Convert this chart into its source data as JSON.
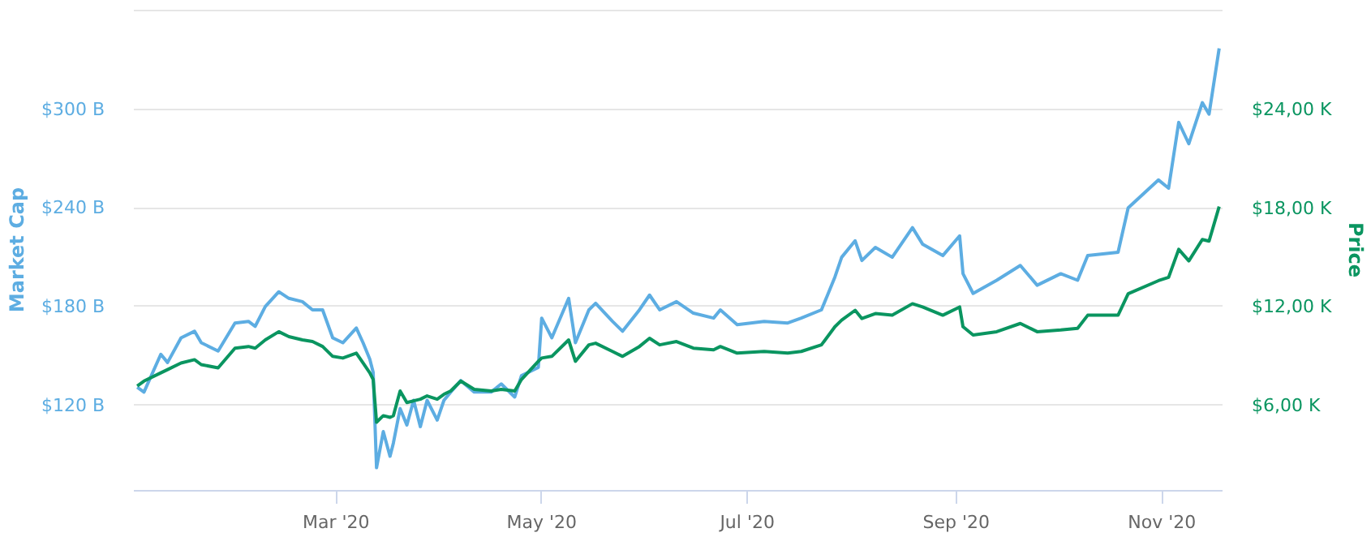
{
  "chart_data": {
    "type": "line",
    "ylabel": "Market Cap",
    "y2label": "Price",
    "x": [
      "2020-01-02",
      "2020-01-04",
      "2020-01-09",
      "2020-01-11",
      "2020-01-15",
      "2020-01-19",
      "2020-01-21",
      "2020-01-26",
      "2020-01-31",
      "2020-02-04",
      "2020-02-06",
      "2020-02-09",
      "2020-02-13",
      "2020-02-16",
      "2020-02-20",
      "2020-02-23",
      "2020-02-26",
      "2020-02-29",
      "2020-03-03",
      "2020-03-07",
      "2020-03-09",
      "2020-03-11",
      "2020-03-12",
      "2020-03-13",
      "2020-03-15",
      "2020-03-17",
      "2020-03-18",
      "2020-03-20",
      "2020-03-22",
      "2020-03-24",
      "2020-03-26",
      "2020-03-28",
      "2020-03-31",
      "2020-04-02",
      "2020-04-04",
      "2020-04-07",
      "2020-04-11",
      "2020-04-16",
      "2020-04-19",
      "2020-04-23",
      "2020-04-25",
      "2020-04-30",
      "2020-05-01",
      "2020-05-04",
      "2020-05-09",
      "2020-05-11",
      "2020-05-15",
      "2020-05-17",
      "2020-05-22",
      "2020-05-25",
      "2020-05-30",
      "2020-06-02",
      "2020-06-05",
      "2020-06-10",
      "2020-06-15",
      "2020-06-21",
      "2020-06-23",
      "2020-06-28",
      "2020-07-06",
      "2020-07-13",
      "2020-07-17",
      "2020-07-23",
      "2020-07-27",
      "2020-07-29",
      "2020-08-02",
      "2020-08-04",
      "2020-08-08",
      "2020-08-13",
      "2020-08-19",
      "2020-08-22",
      "2020-08-28",
      "2020-09-02",
      "2020-09-03",
      "2020-09-06",
      "2020-09-13",
      "2020-09-20",
      "2020-09-25",
      "2020-10-02",
      "2020-10-07",
      "2020-10-10",
      "2020-10-19",
      "2020-10-22",
      "2020-10-31",
      "2020-11-03",
      "2020-11-06",
      "2020-11-09",
      "2020-11-13",
      "2020-11-15",
      "2020-11-18"
    ],
    "series": [
      {
        "color": "#5dade2",
        "values": [
          131,
          128,
          151,
          146,
          161,
          165,
          158,
          153,
          170,
          171,
          168,
          180,
          189,
          185,
          183,
          178,
          178,
          161,
          158,
          167,
          158,
          148,
          140,
          82,
          104,
          89,
          97,
          118,
          108,
          123,
          107,
          123,
          111,
          123,
          128,
          135,
          128,
          128,
          133,
          125,
          138,
          143,
          173,
          161,
          185,
          158,
          178,
          182,
          171,
          165,
          178,
          187,
          178,
          183,
          176,
          173,
          178,
          169,
          171,
          170,
          173,
          178,
          198,
          210,
          220,
          208,
          216,
          210,
          228,
          218,
          211,
          223,
          200,
          188,
          196,
          205,
          193,
          200,
          196,
          211,
          213,
          240,
          257,
          252,
          292,
          279,
          304,
          297,
          337
        ]
      },
      {
        "color": "#0a9560",
        "axis": "y2",
        "values": [
          7.2,
          7.5,
          8.0,
          8.2,
          8.6,
          8.8,
          8.5,
          8.3,
          9.5,
          9.6,
          9.5,
          10.0,
          10.5,
          10.2,
          10.0,
          9.9,
          9.6,
          9.0,
          8.9,
          9.2,
          8.6,
          8.0,
          7.6,
          5.0,
          5.4,
          5.3,
          5.4,
          6.9,
          6.2,
          6.3,
          6.4,
          6.6,
          6.4,
          6.7,
          6.9,
          7.5,
          7.0,
          6.9,
          7.0,
          6.9,
          7.6,
          8.7,
          8.9,
          9.0,
          10.0,
          8.7,
          9.7,
          9.8,
          9.3,
          9.0,
          9.6,
          10.1,
          9.7,
          9.9,
          9.5,
          9.4,
          9.6,
          9.2,
          9.3,
          9.2,
          9.3,
          9.7,
          10.8,
          11.2,
          11.8,
          11.3,
          11.6,
          11.5,
          12.2,
          12.0,
          11.5,
          12.0,
          10.8,
          10.3,
          10.5,
          11.0,
          10.5,
          10.6,
          10.7,
          11.5,
          11.5,
          12.8,
          13.6,
          13.8,
          15.5,
          14.8,
          16.1,
          16.0,
          18.1
        ]
      }
    ],
    "xlim": [
      "2020-01-01",
      "2020-11-19"
    ],
    "xticks": [
      {
        "value": "2020-03-01",
        "label": "Mar '20"
      },
      {
        "value": "2020-05-01",
        "label": "May '20"
      },
      {
        "value": "2020-07-01",
        "label": "Jul '20"
      },
      {
        "value": "2020-09-01",
        "label": "Sep '20"
      },
      {
        "value": "2020-11-01",
        "label": "Nov '20"
      }
    ],
    "ylim": [
      68,
      361
    ],
    "yticks": [
      {
        "value": 120,
        "label": "$120 B"
      },
      {
        "value": 180,
        "label": "$180 B"
      },
      {
        "value": 240,
        "label": "$240 B"
      },
      {
        "value": 300,
        "label": "$300 B"
      },
      {
        "value": 360,
        "label": null
      }
    ],
    "y2lim": [
      0.84,
      30.1
    ],
    "y2ticks": [
      {
        "value": 6,
        "label": "$6,00 K"
      },
      {
        "value": 12,
        "label": "$12,00 K"
      },
      {
        "value": 18,
        "label": "$18,00 K"
      },
      {
        "value": 24,
        "label": "$24,00 K"
      },
      {
        "value": 30,
        "label": null
      }
    ],
    "grid": "y",
    "line_style": "solid",
    "marker": "none"
  }
}
